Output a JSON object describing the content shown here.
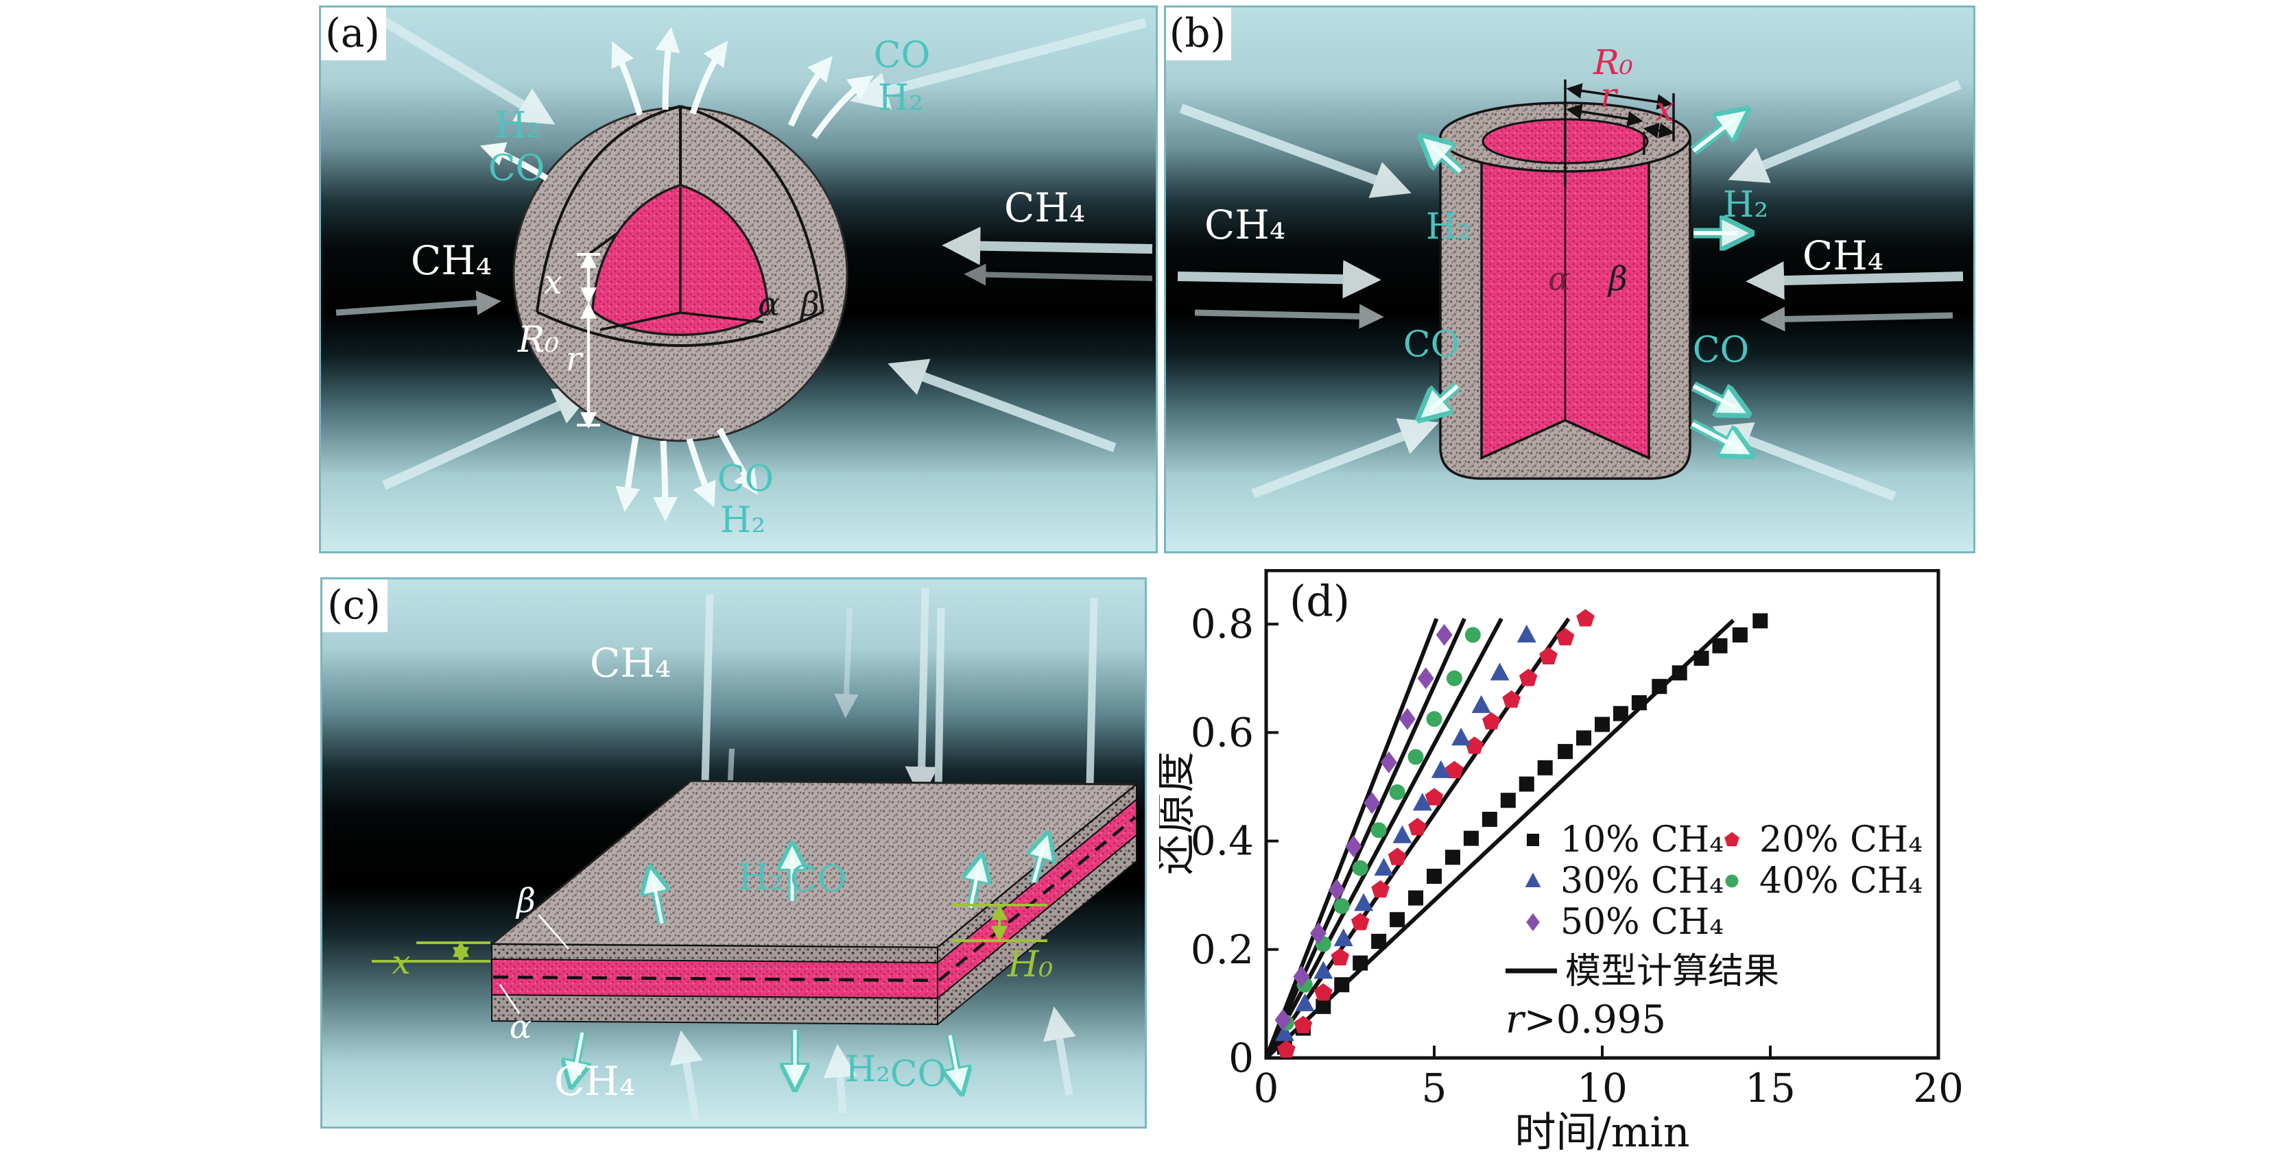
{
  "panel_a": {
    "label": "(a)",
    "labels": {
      "ch4_left": "CH₄",
      "ch4_right": "CH₄",
      "h2_left": "H₂",
      "co_left": "CO",
      "co_top_right": "CO",
      "h2_top_right": "H₂",
      "co_bottom": "CO",
      "h2_bottom": "H₂",
      "dim_x": "x",
      "dim_r": "r",
      "dim_r0": "R₀",
      "alpha": "α",
      "beta": "β"
    }
  },
  "panel_b": {
    "label": "(b)",
    "labels": {
      "ch4_left": "CH₄",
      "ch4_right": "CH₄",
      "h2_left": "H₂",
      "h2_right": "H₂",
      "co_left": "CO",
      "co_right": "CO",
      "dim_r0": "R₀",
      "dim_r": "r",
      "dim_x": "x",
      "alpha": "α",
      "beta": "β"
    }
  },
  "panel_c": {
    "label": "(c)",
    "labels": {
      "ch4_top": "CH₄",
      "ch4_bottom": "CH₄",
      "h2_top": "H₂",
      "co_top": "CO",
      "h2_bottom": "H₂",
      "co_bottom": "CO",
      "dim_x": "x",
      "dim_h0": "H₀",
      "alpha": "α",
      "beta": "β"
    }
  },
  "chart": {
    "panel_label": "(d)",
    "xlabel": "时间/min",
    "ylabel": "还原度",
    "annotation": "r>0.995",
    "model_label": "模型计算结果"
  },
  "chart_data": {
    "type": "scatter",
    "title": "",
    "xlabel": "时间/min",
    "ylabel": "还原度",
    "xlim": [
      0,
      20
    ],
    "ylim": [
      0,
      0.9
    ],
    "x_ticks": [
      0,
      5,
      10,
      15,
      20
    ],
    "y_ticks": [
      0,
      0.2,
      0.4,
      0.6,
      0.8
    ],
    "grid": false,
    "legend_position": "inside-right",
    "series": [
      {
        "name": "10% CH₄",
        "marker": "square",
        "color": "#111111",
        "points": [
          [
            0.55,
            0.02
          ],
          [
            1.1,
            0.055
          ],
          [
            1.7,
            0.095
          ],
          [
            2.25,
            0.135
          ],
          [
            2.8,
            0.175
          ],
          [
            3.35,
            0.215
          ],
          [
            3.9,
            0.255
          ],
          [
            4.45,
            0.295
          ],
          [
            5.0,
            0.335
          ],
          [
            5.55,
            0.37
          ],
          [
            6.1,
            0.405
          ],
          [
            6.65,
            0.44
          ],
          [
            7.2,
            0.475
          ],
          [
            7.75,
            0.505
          ],
          [
            8.3,
            0.535
          ],
          [
            8.9,
            0.565
          ],
          [
            9.45,
            0.59
          ],
          [
            10.0,
            0.615
          ],
          [
            10.55,
            0.635
          ],
          [
            11.1,
            0.655
          ],
          [
            11.7,
            0.685
          ],
          [
            12.3,
            0.71
          ],
          [
            12.95,
            0.737
          ],
          [
            13.5,
            0.76
          ],
          [
            14.1,
            0.78
          ],
          [
            14.7,
            0.806
          ]
        ]
      },
      {
        "name": "20% CH₄",
        "marker": "pentagon",
        "color": "#d91f3d",
        "points": [
          [
            0.6,
            0.015
          ],
          [
            1.1,
            0.06
          ],
          [
            1.7,
            0.12
          ],
          [
            2.2,
            0.185
          ],
          [
            2.8,
            0.25
          ],
          [
            3.4,
            0.31
          ],
          [
            3.9,
            0.37
          ],
          [
            4.5,
            0.425
          ],
          [
            5.0,
            0.48
          ],
          [
            5.6,
            0.53
          ],
          [
            6.2,
            0.575
          ],
          [
            6.7,
            0.62
          ],
          [
            7.3,
            0.66
          ],
          [
            7.8,
            0.7
          ],
          [
            8.4,
            0.74
          ],
          [
            8.9,
            0.775
          ],
          [
            9.5,
            0.81
          ]
        ]
      },
      {
        "name": "30% CH₄",
        "marker": "triangle",
        "color": "#3a55a4",
        "points": [
          [
            0.55,
            0.045
          ],
          [
            1.15,
            0.1
          ],
          [
            1.7,
            0.16
          ],
          [
            2.3,
            0.22
          ],
          [
            2.9,
            0.285
          ],
          [
            3.5,
            0.35
          ],
          [
            4.05,
            0.41
          ],
          [
            4.65,
            0.47
          ],
          [
            5.2,
            0.53
          ],
          [
            5.8,
            0.59
          ],
          [
            6.4,
            0.65
          ],
          [
            6.95,
            0.71
          ],
          [
            7.75,
            0.78
          ]
        ]
      },
      {
        "name": "40% CH₄",
        "marker": "circle",
        "color": "#3aa85e",
        "points": [
          [
            0.6,
            0.065
          ],
          [
            1.15,
            0.135
          ],
          [
            1.7,
            0.21
          ],
          [
            2.25,
            0.28
          ],
          [
            2.8,
            0.35
          ],
          [
            3.35,
            0.42
          ],
          [
            3.9,
            0.49
          ],
          [
            4.45,
            0.555
          ],
          [
            5.0,
            0.625
          ],
          [
            5.6,
            0.7
          ],
          [
            6.15,
            0.78
          ]
        ]
      },
      {
        "name": "50% CH₄",
        "marker": "diamond",
        "color": "#8a4fae",
        "points": [
          [
            0.5,
            0.07
          ],
          [
            1.05,
            0.15
          ],
          [
            1.55,
            0.23
          ],
          [
            2.1,
            0.31
          ],
          [
            2.6,
            0.39
          ],
          [
            3.15,
            0.47
          ],
          [
            3.65,
            0.545
          ],
          [
            4.2,
            0.625
          ],
          [
            4.75,
            0.7
          ],
          [
            5.3,
            0.78
          ]
        ]
      }
    ],
    "model_lines": {
      "label": "模型计算结果",
      "color": "#111111",
      "lines": [
        {
          "series": "10% CH₄",
          "from": [
            0,
            0
          ],
          "to": [
            13.9,
            0.807
          ]
        },
        {
          "series": "20% CH₄",
          "from": [
            0,
            0
          ],
          "to": [
            9.0,
            0.81
          ]
        },
        {
          "series": "30% CH₄",
          "from": [
            0,
            0
          ],
          "to": [
            7.0,
            0.81
          ]
        },
        {
          "series": "40% CH₄",
          "from": [
            0,
            0
          ],
          "to": [
            5.9,
            0.81
          ]
        },
        {
          "series": "50% CH₄",
          "from": [
            0,
            0
          ],
          "to": [
            5.07,
            0.81
          ]
        }
      ]
    },
    "annotation": "r>0.995"
  },
  "colors": {
    "teal_label": "#4cc3bd",
    "pink_core": "#e73b7d",
    "shell_gray": "#b6abab",
    "dim_red": "#e0274e",
    "dim_green": "#9dc435",
    "panel_border": "#79b7c2",
    "background_cyan": "#badfe3",
    "marker_black": "#111111",
    "marker_red": "#d91f3d",
    "marker_blue": "#3a55a4",
    "marker_green": "#3aa85e",
    "marker_purple": "#8a4fae"
  }
}
